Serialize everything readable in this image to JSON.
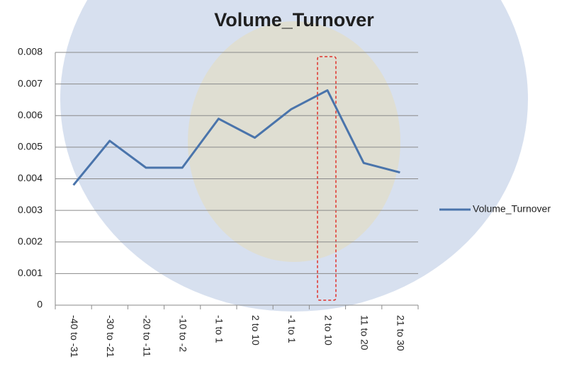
{
  "chart_data": {
    "type": "line",
    "title": "Volume_Turnover",
    "categories": [
      "-40 to -31",
      "-30 to -21",
      "-20 to -11",
      "-10 to -2",
      "-1 to 1",
      "2 to 10",
      "-1 to 1",
      "2 to 10",
      "11 to 20",
      "21 to 30"
    ],
    "series": [
      {
        "name": "Volume_Turnover",
        "color": "#4a74ab",
        "values": [
          0.0038,
          0.0052,
          0.00435,
          0.00435,
          0.0059,
          0.0053,
          0.0062,
          0.0068,
          0.0045,
          0.0042
        ]
      }
    ],
    "ylim": [
      0,
      0.008
    ],
    "yticks": [
      0,
      0.001,
      0.002,
      0.003,
      0.004,
      0.005,
      0.006,
      0.007,
      0.008
    ],
    "grid": true,
    "legend": "right"
  }
}
